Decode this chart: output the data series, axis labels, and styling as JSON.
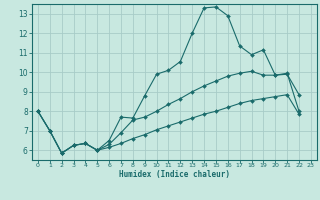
{
  "xlabel": "Humidex (Indice chaleur)",
  "bg_color": "#c8e8e0",
  "grid_color": "#a8ccc8",
  "line_color": "#1a6b6b",
  "xlim": [
    -0.5,
    23.5
  ],
  "ylim": [
    5.5,
    13.5
  ],
  "xticks": [
    0,
    1,
    2,
    3,
    4,
    5,
    6,
    7,
    8,
    9,
    10,
    11,
    12,
    13,
    14,
    15,
    16,
    17,
    18,
    19,
    20,
    21,
    22,
    23
  ],
  "yticks": [
    6,
    7,
    8,
    9,
    10,
    11,
    12,
    13
  ],
  "line1_x": [
    0,
    1,
    2,
    3,
    4,
    5,
    6,
    7,
    8,
    9,
    10,
    11,
    12,
    13,
    14,
    15,
    16,
    17,
    18,
    19,
    20,
    21,
    22
  ],
  "line1_y": [
    8.0,
    7.0,
    5.85,
    6.25,
    6.35,
    6.0,
    6.5,
    7.7,
    7.65,
    8.8,
    9.9,
    10.1,
    10.55,
    12.0,
    13.3,
    13.35,
    12.9,
    11.35,
    10.9,
    11.15,
    9.85,
    9.9,
    8.85
  ],
  "line2_x": [
    0,
    1,
    2,
    3,
    4,
    5,
    6,
    7,
    8,
    9,
    10,
    11,
    12,
    13,
    14,
    15,
    16,
    17,
    18,
    19,
    20,
    21,
    22
  ],
  "line2_y": [
    8.0,
    7.0,
    5.85,
    6.25,
    6.35,
    6.0,
    6.3,
    6.9,
    7.55,
    7.7,
    8.0,
    8.35,
    8.65,
    9.0,
    9.3,
    9.55,
    9.8,
    9.95,
    10.05,
    9.85,
    9.85,
    9.95,
    8.0
  ],
  "line3_x": [
    0,
    1,
    2,
    3,
    4,
    5,
    6,
    7,
    8,
    9,
    10,
    11,
    12,
    13,
    14,
    15,
    16,
    17,
    18,
    19,
    20,
    21,
    22
  ],
  "line3_y": [
    8.0,
    7.0,
    5.85,
    6.25,
    6.35,
    6.0,
    6.15,
    6.35,
    6.6,
    6.8,
    7.05,
    7.25,
    7.45,
    7.65,
    7.85,
    8.0,
    8.2,
    8.4,
    8.55,
    8.65,
    8.75,
    8.85,
    7.85
  ]
}
